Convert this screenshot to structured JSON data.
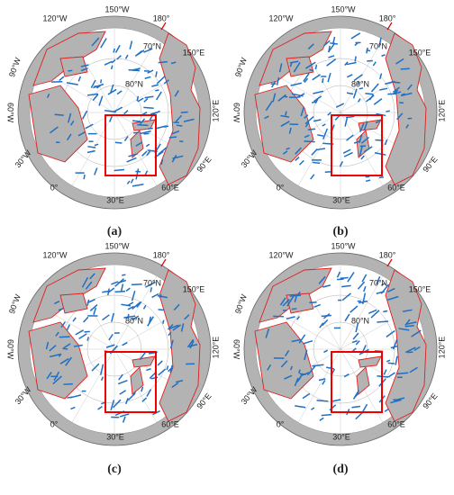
{
  "graticule_labels": {
    "lon_150w": "150°W",
    "lon_180": "180°",
    "lon_120w": "120°W",
    "lon_150e": "150°E",
    "lon_90w": "90°W",
    "lon_60w": "60°W",
    "lon_120e": "120°E",
    "lon_30w": "30°W",
    "lon_90e": "90°E",
    "lon_0": "0°",
    "lon_30e": "30°E",
    "lon_60e": "60°E",
    "lat_70n": "70°N",
    "lat_80n": "80°N"
  },
  "panels": [
    {
      "caption": "(a)"
    },
    {
      "caption": "(b)"
    },
    {
      "caption": "(c)"
    },
    {
      "caption": "(d)"
    }
  ]
}
